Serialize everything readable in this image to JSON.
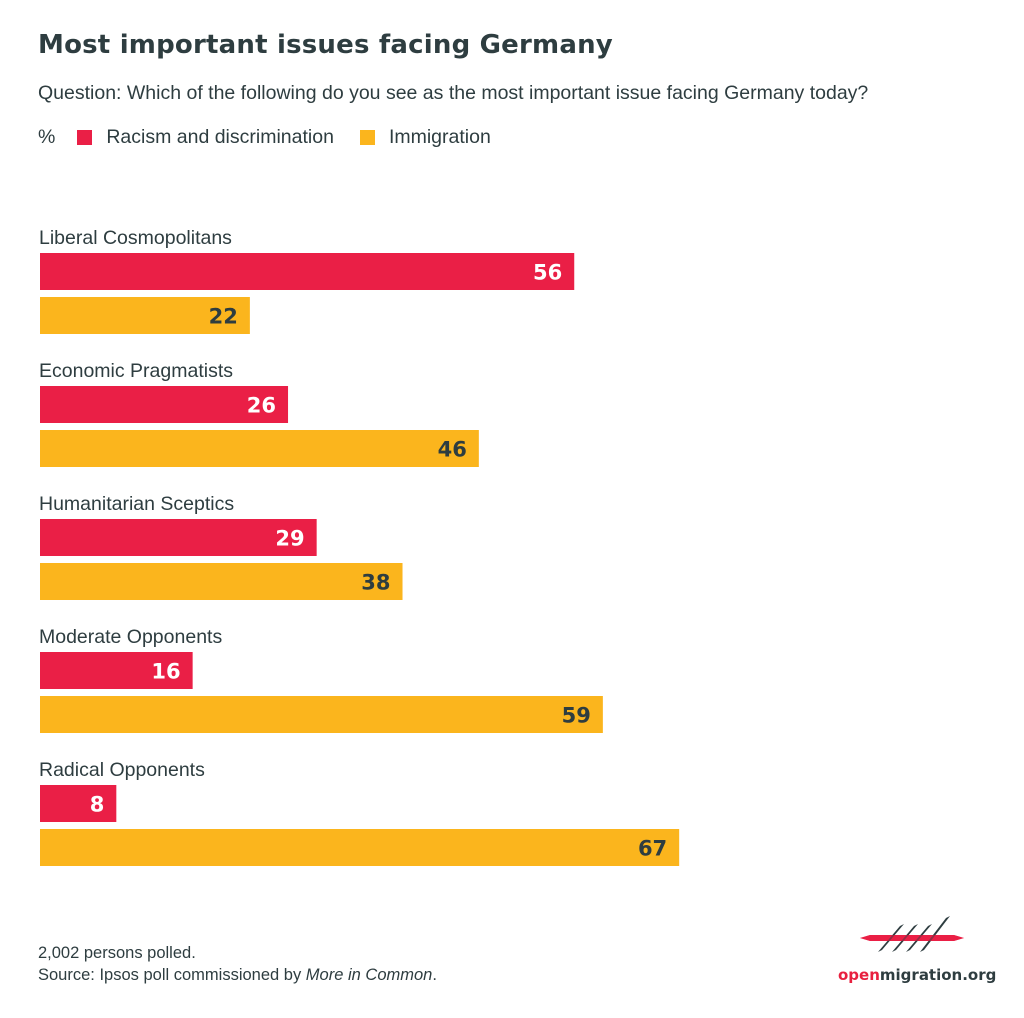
{
  "header": {
    "title": "Most important issues facing Germany",
    "subtitle": "Question: Which of the following do you see as the most important issue facing Germany today?"
  },
  "legend": {
    "unit": "%",
    "items": [
      {
        "label": "Racism and discrimination",
        "color": "#ea1f46"
      },
      {
        "label": "Immigration",
        "color": "#fbb51d"
      }
    ]
  },
  "footer": {
    "line1": "2,002 persons polled.",
    "source_prefix": "Source: Ipsos poll commissioned by ",
    "source_name": "More in Common",
    "source_suffix": "."
  },
  "logo": {
    "text_open": "open",
    "text_rest": "migration.org"
  },
  "colors": {
    "text": "#2e3d40",
    "label_on_red": "#ffffff",
    "label_on_yellow": "#2e3d40"
  },
  "chart_data": {
    "type": "bar",
    "orientation": "horizontal",
    "title": "Most important issues facing Germany",
    "subtitle": "Question: Which of the following do you see as the most important issue facing Germany today?",
    "xlabel": "",
    "ylabel": "",
    "unit": "%",
    "xlim": [
      0,
      100
    ],
    "grid": false,
    "legend_position": "top-left",
    "categories": [
      "Liberal Cosmopolitans",
      "Economic Pragmatists",
      "Humanitarian Sceptics",
      "Moderate Opponents",
      "Radical Opponents"
    ],
    "series": [
      {
        "name": "Racism and discrimination",
        "color": "#ea1f46",
        "values": [
          56,
          26,
          29,
          16,
          8
        ]
      },
      {
        "name": "Immigration",
        "color": "#fbb51d",
        "values": [
          22,
          46,
          38,
          59,
          67
        ]
      }
    ]
  }
}
